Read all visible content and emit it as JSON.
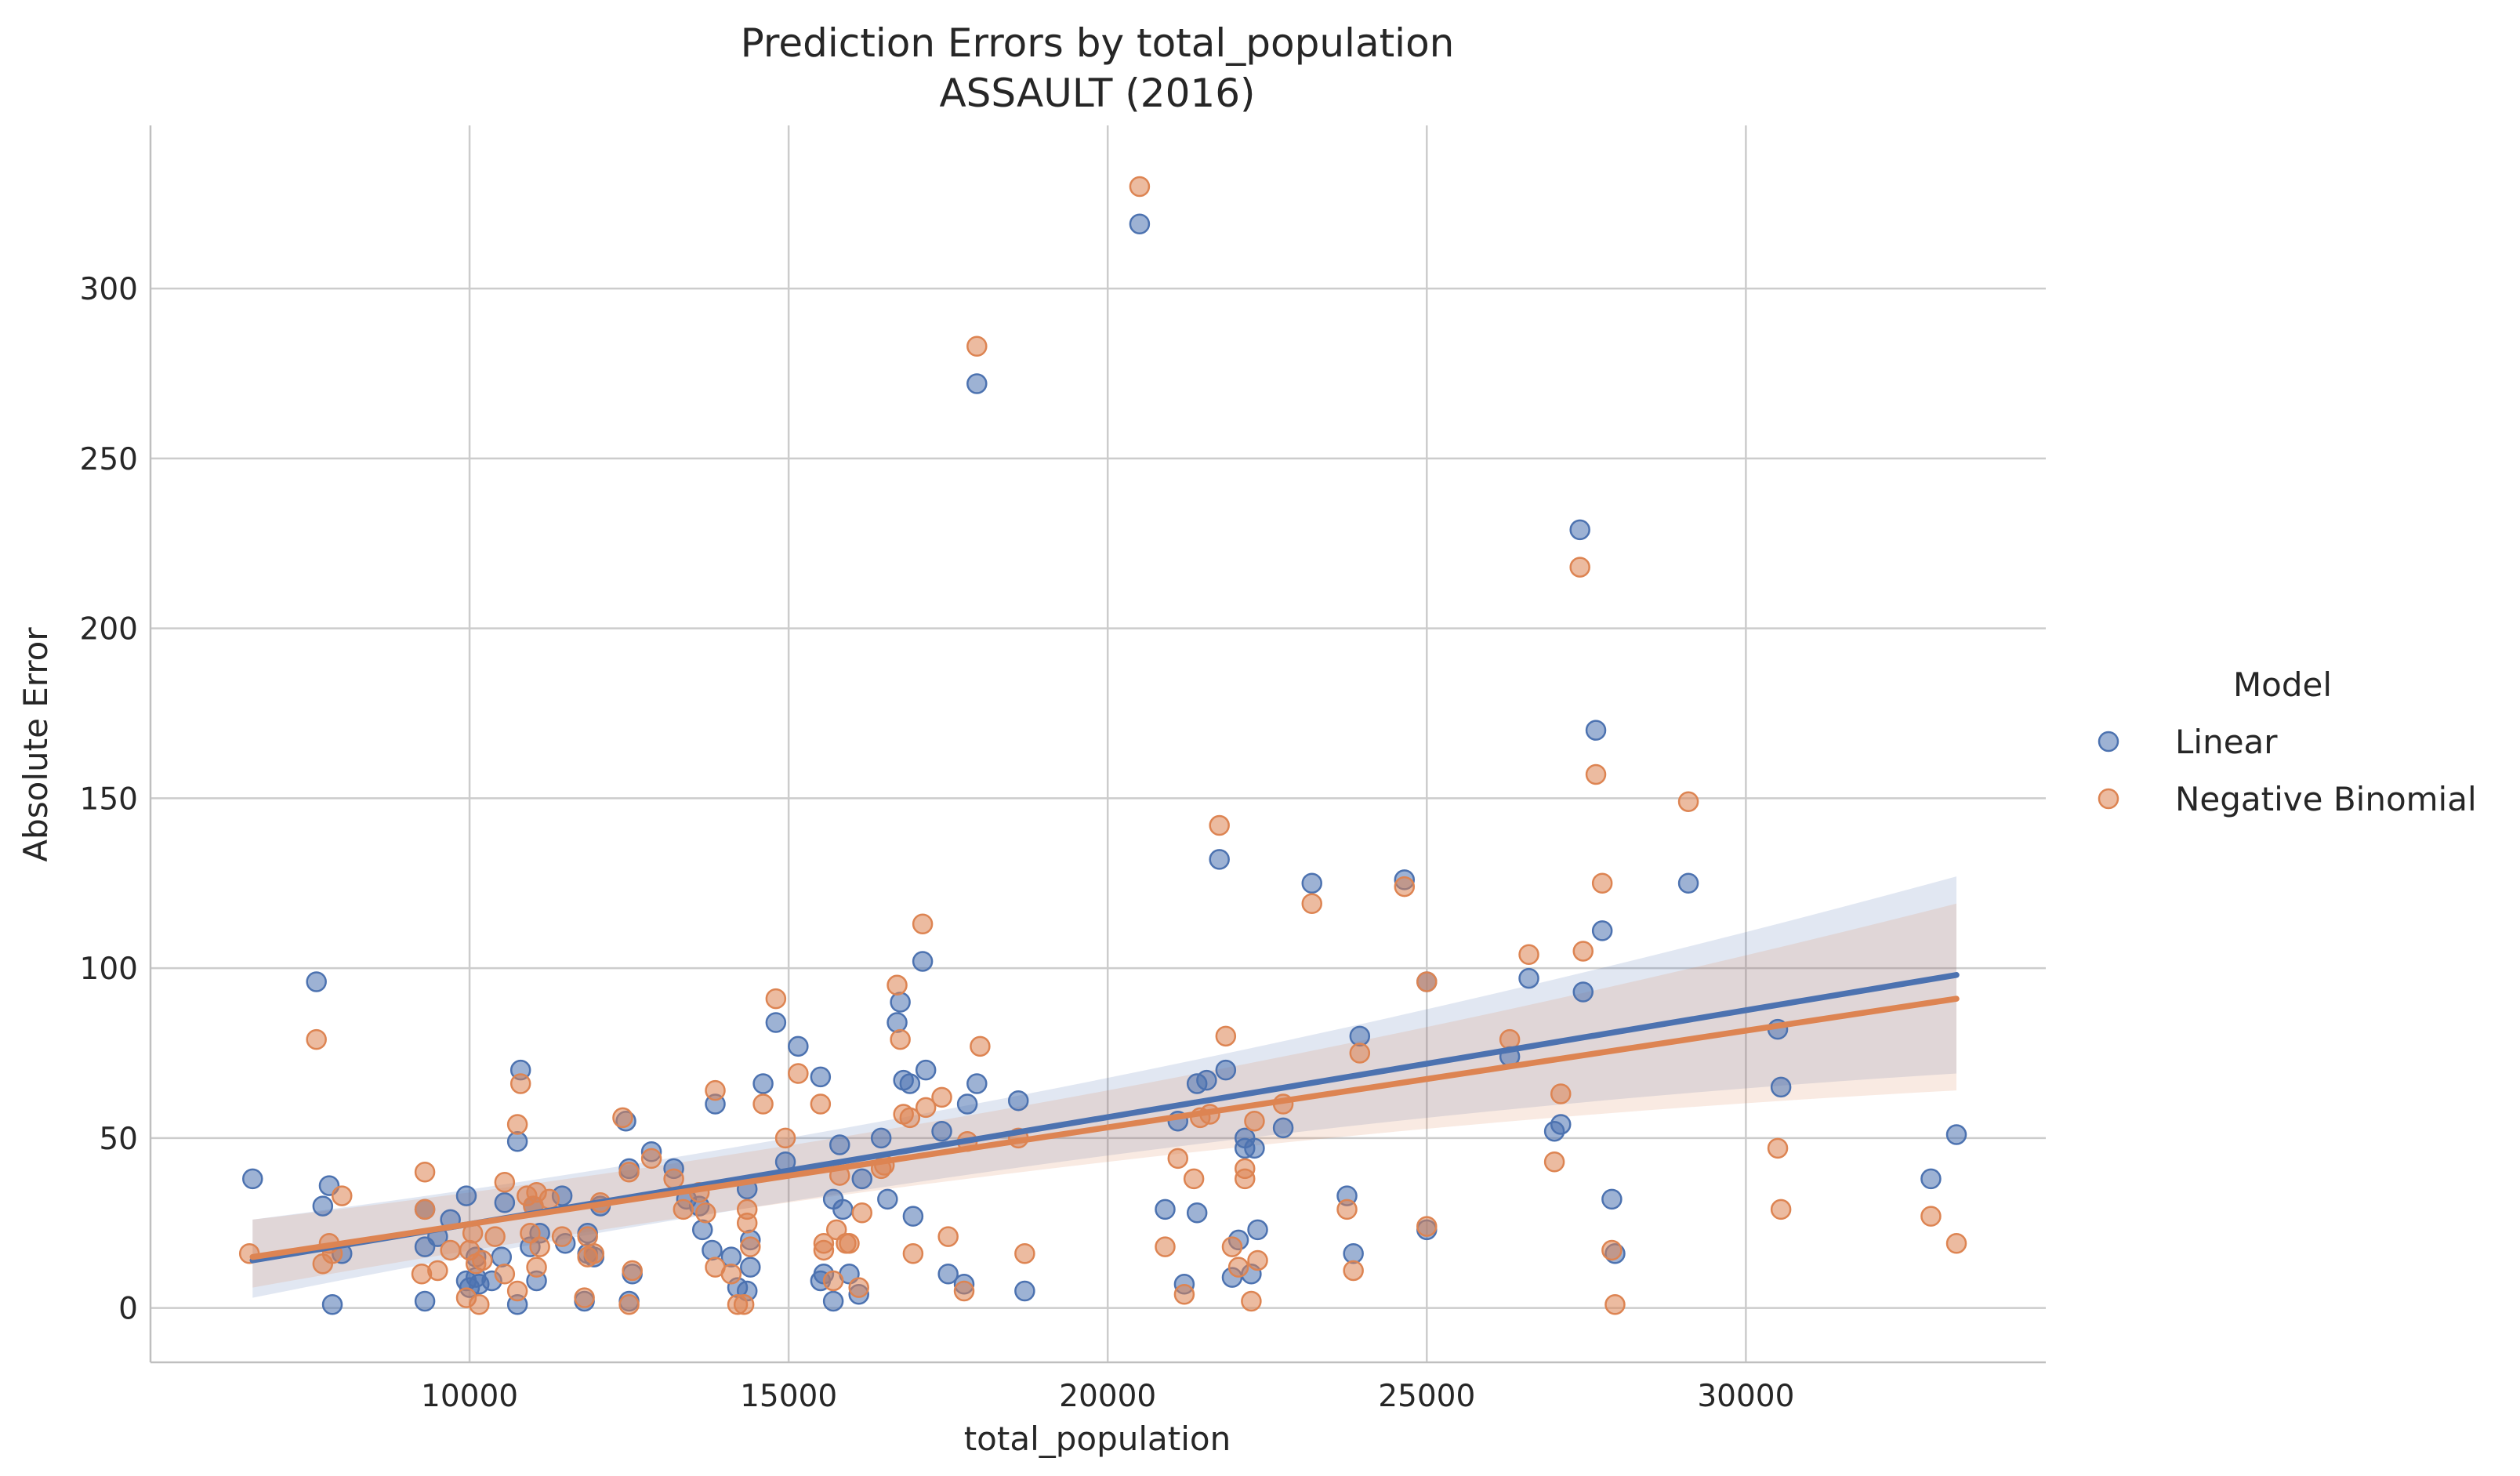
{
  "chart_data": {
    "type": "scatter",
    "title": "Prediction Errors by total_population",
    "subtitle": "ASSAULT (2016)",
    "xlabel": "total_population",
    "ylabel": "Absolute Error",
    "xlim": [
      5000,
      34700
    ],
    "ylim": [
      -16,
      348
    ],
    "x_ticks": [
      "10000",
      "15000",
      "20000",
      "25000",
      "30000"
    ],
    "y_ticks": [
      "0",
      "50",
      "100",
      "150",
      "200",
      "250",
      "300"
    ],
    "grid": true,
    "legend_title": "Model",
    "legend_position": "right",
    "series": [
      {
        "name": "Linear",
        "color": "#4C72B0",
        "regression": {
          "x": [
            6600,
            33300
          ],
          "y": [
            14,
            98
          ],
          "ci_low_end": [
            3,
            69
          ],
          "ci_high_end": [
            26,
            127
          ]
        },
        "points": [
          [
            6600,
            38
          ],
          [
            7600,
            96
          ],
          [
            7700,
            30
          ],
          [
            7800,
            36
          ],
          [
            7850,
            1
          ],
          [
            8000,
            16
          ],
          [
            9300,
            2
          ],
          [
            9300,
            18
          ],
          [
            9300,
            29
          ],
          [
            9500,
            21
          ],
          [
            9700,
            26
          ],
          [
            9950,
            33
          ],
          [
            9950,
            8
          ],
          [
            10000,
            6
          ],
          [
            10100,
            15
          ],
          [
            10100,
            9
          ],
          [
            10150,
            7
          ],
          [
            10350,
            8
          ],
          [
            10500,
            15
          ],
          [
            10550,
            31
          ],
          [
            10750,
            1
          ],
          [
            10750,
            49
          ],
          [
            10800,
            70
          ],
          [
            10950,
            18
          ],
          [
            11000,
            30
          ],
          [
            11050,
            8
          ],
          [
            11100,
            22
          ],
          [
            11450,
            33
          ],
          [
            11500,
            19
          ],
          [
            11800,
            2
          ],
          [
            11850,
            16
          ],
          [
            11850,
            22
          ],
          [
            11950,
            15
          ],
          [
            12050,
            30
          ],
          [
            12450,
            55
          ],
          [
            12500,
            41
          ],
          [
            12500,
            2
          ],
          [
            12550,
            10
          ],
          [
            12850,
            46
          ],
          [
            13200,
            41
          ],
          [
            13400,
            32
          ],
          [
            13600,
            30
          ],
          [
            13650,
            23
          ],
          [
            13800,
            17
          ],
          [
            13850,
            60
          ],
          [
            14100,
            15
          ],
          [
            14200,
            6
          ],
          [
            14350,
            35
          ],
          [
            14350,
            5
          ],
          [
            14400,
            20
          ],
          [
            14400,
            12
          ],
          [
            14600,
            66
          ],
          [
            14800,
            84
          ],
          [
            14950,
            43
          ],
          [
            15150,
            77
          ],
          [
            15500,
            68
          ],
          [
            15500,
            8
          ],
          [
            15550,
            10
          ],
          [
            15700,
            2
          ],
          [
            15700,
            32
          ],
          [
            15800,
            48
          ],
          [
            15850,
            29
          ],
          [
            15950,
            10
          ],
          [
            16100,
            4
          ],
          [
            16150,
            38
          ],
          [
            16450,
            50
          ],
          [
            16550,
            32
          ],
          [
            16700,
            84
          ],
          [
            16750,
            90
          ],
          [
            16800,
            67
          ],
          [
            16900,
            66
          ],
          [
            16950,
            27
          ],
          [
            17100,
            102
          ],
          [
            17150,
            70
          ],
          [
            17400,
            52
          ],
          [
            17500,
            10
          ],
          [
            17750,
            7
          ],
          [
            17800,
            60
          ],
          [
            17950,
            272
          ],
          [
            17950,
            66
          ],
          [
            18600,
            61
          ],
          [
            18700,
            5
          ],
          [
            20500,
            319
          ],
          [
            20900,
            29
          ],
          [
            21100,
            55
          ],
          [
            21200,
            7
          ],
          [
            21400,
            66
          ],
          [
            21400,
            28
          ],
          [
            21550,
            67
          ],
          [
            21750,
            132
          ],
          [
            21850,
            70
          ],
          [
            21950,
            9
          ],
          [
            22050,
            20
          ],
          [
            22150,
            50
          ],
          [
            22150,
            47
          ],
          [
            22250,
            10
          ],
          [
            22300,
            47
          ],
          [
            22350,
            23
          ],
          [
            22750,
            53
          ],
          [
            23200,
            125
          ],
          [
            23750,
            33
          ],
          [
            23850,
            16
          ],
          [
            23950,
            80
          ],
          [
            24650,
            126
          ],
          [
            25000,
            96
          ],
          [
            25000,
            23
          ],
          [
            26300,
            74
          ],
          [
            26600,
            97
          ],
          [
            27000,
            52
          ],
          [
            27100,
            54
          ],
          [
            27400,
            229
          ],
          [
            27450,
            93
          ],
          [
            27650,
            170
          ],
          [
            27750,
            111
          ],
          [
            27900,
            32
          ],
          [
            27950,
            16
          ],
          [
            29100,
            125
          ],
          [
            30500,
            82
          ],
          [
            30550,
            65
          ],
          [
            32900,
            38
          ],
          [
            33300,
            51
          ]
        ]
      },
      {
        "name": "Negative Binomial",
        "color": "#DD8452",
        "regression": {
          "x": [
            6600,
            33300
          ],
          "y": [
            15,
            91
          ],
          "ci_low_end": [
            6,
            64
          ],
          "ci_high_end": [
            26,
            119
          ]
        },
        "points": [
          [
            6550,
            16
          ],
          [
            7600,
            79
          ],
          [
            7700,
            13
          ],
          [
            7800,
            19
          ],
          [
            7850,
            16
          ],
          [
            8000,
            33
          ],
          [
            9250,
            10
          ],
          [
            9300,
            40
          ],
          [
            9300,
            29
          ],
          [
            9500,
            11
          ],
          [
            9700,
            17
          ],
          [
            9950,
            3
          ],
          [
            10000,
            17
          ],
          [
            10050,
            22
          ],
          [
            10100,
            13
          ],
          [
            10150,
            1
          ],
          [
            10200,
            14
          ],
          [
            10400,
            21
          ],
          [
            10550,
            37
          ],
          [
            10550,
            10
          ],
          [
            10750,
            5
          ],
          [
            10750,
            54
          ],
          [
            10800,
            66
          ],
          [
            10900,
            33
          ],
          [
            10950,
            22
          ],
          [
            11000,
            30
          ],
          [
            11050,
            34
          ],
          [
            11050,
            12
          ],
          [
            11100,
            18
          ],
          [
            11250,
            32
          ],
          [
            11450,
            21
          ],
          [
            11800,
            3
          ],
          [
            11850,
            15
          ],
          [
            11850,
            21
          ],
          [
            11950,
            16
          ],
          [
            12050,
            31
          ],
          [
            12400,
            56
          ],
          [
            12500,
            40
          ],
          [
            12500,
            1
          ],
          [
            12550,
            11
          ],
          [
            12850,
            44
          ],
          [
            13200,
            38
          ],
          [
            13350,
            29
          ],
          [
            13600,
            34
          ],
          [
            13700,
            28
          ],
          [
            13850,
            64
          ],
          [
            13850,
            12
          ],
          [
            14100,
            10
          ],
          [
            14200,
            1
          ],
          [
            14300,
            1
          ],
          [
            14350,
            29
          ],
          [
            14350,
            25
          ],
          [
            14400,
            18
          ],
          [
            14600,
            60
          ],
          [
            14800,
            91
          ],
          [
            14950,
            50
          ],
          [
            15150,
            69
          ],
          [
            15500,
            60
          ],
          [
            15550,
            19
          ],
          [
            15550,
            17
          ],
          [
            15700,
            8
          ],
          [
            15750,
            23
          ],
          [
            15800,
            39
          ],
          [
            15900,
            19
          ],
          [
            15950,
            19
          ],
          [
            16100,
            6
          ],
          [
            16150,
            28
          ],
          [
            16450,
            41
          ],
          [
            16500,
            42
          ],
          [
            16700,
            95
          ],
          [
            16750,
            79
          ],
          [
            16800,
            57
          ],
          [
            16900,
            56
          ],
          [
            16950,
            16
          ],
          [
            17100,
            113
          ],
          [
            17150,
            59
          ],
          [
            17400,
            62
          ],
          [
            17500,
            21
          ],
          [
            17750,
            5
          ],
          [
            17800,
            49
          ],
          [
            17950,
            283
          ],
          [
            18000,
            77
          ],
          [
            18600,
            50
          ],
          [
            18700,
            16
          ],
          [
            20500,
            330
          ],
          [
            20900,
            18
          ],
          [
            21100,
            44
          ],
          [
            21200,
            4
          ],
          [
            21350,
            38
          ],
          [
            21450,
            56
          ],
          [
            21600,
            57
          ],
          [
            21750,
            142
          ],
          [
            21850,
            80
          ],
          [
            21950,
            18
          ],
          [
            22050,
            12
          ],
          [
            22150,
            41
          ],
          [
            22150,
            38
          ],
          [
            22250,
            2
          ],
          [
            22300,
            55
          ],
          [
            22350,
            14
          ],
          [
            22750,
            60
          ],
          [
            23200,
            119
          ],
          [
            23750,
            29
          ],
          [
            23850,
            11
          ],
          [
            23950,
            75
          ],
          [
            24650,
            124
          ],
          [
            25000,
            96
          ],
          [
            25000,
            24
          ],
          [
            26300,
            79
          ],
          [
            26600,
            104
          ],
          [
            27000,
            43
          ],
          [
            27100,
            63
          ],
          [
            27400,
            218
          ],
          [
            27450,
            105
          ],
          [
            27650,
            157
          ],
          [
            27750,
            125
          ],
          [
            27900,
            17
          ],
          [
            27950,
            1
          ],
          [
            29100,
            149
          ],
          [
            30500,
            47
          ],
          [
            30550,
            29
          ],
          [
            32900,
            27
          ],
          [
            33300,
            19
          ]
        ]
      }
    ]
  }
}
